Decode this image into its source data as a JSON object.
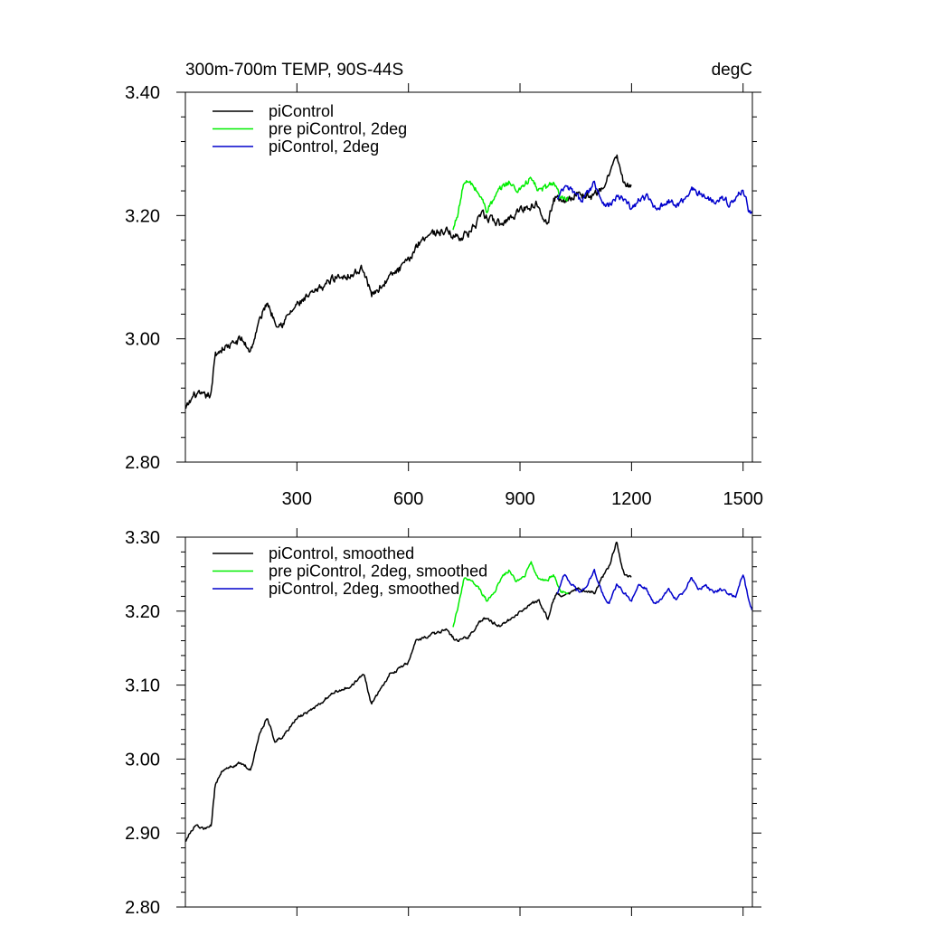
{
  "chart_data": [
    {
      "type": "line",
      "title_left": "300m-700m TEMP, 90S-44S",
      "title_right": "degC",
      "xlim": [
        0,
        1525
      ],
      "ylim": [
        2.8,
        3.4
      ],
      "x_ticks": [
        300,
        600,
        900,
        1200,
        1500
      ],
      "x_tick_labels": [
        "300",
        "600",
        "900",
        "1200",
        "1500"
      ],
      "y_ticks": [
        2.8,
        3.0,
        3.2,
        3.4
      ],
      "y_tick_labels": [
        "2.80",
        "3.00",
        "3.20",
        "3.40"
      ],
      "legend": [
        "piControl",
        "pre piControl, 2deg",
        "piControl, 2deg"
      ],
      "series": [
        {
          "name": "piControl",
          "color": "#000000",
          "noise": 0.012,
          "x": [
            1,
            25,
            50,
            70,
            80,
            100,
            125,
            150,
            175,
            200,
            220,
            240,
            260,
            300,
            350,
            400,
            450,
            480,
            500,
            550,
            600,
            620,
            650,
            700,
            730,
            760,
            800,
            850,
            900,
            950,
            975,
            990,
            1000,
            1020,
            1050,
            1100,
            1120,
            1140,
            1160,
            1170,
            1180,
            1200
          ],
          "values": [
            2.885,
            2.91,
            2.905,
            2.91,
            2.975,
            2.985,
            2.99,
            3.0,
            2.98,
            3.03,
            3.06,
            3.03,
            3.025,
            3.055,
            3.075,
            3.1,
            3.105,
            3.115,
            3.07,
            3.1,
            3.125,
            3.15,
            3.17,
            3.175,
            3.165,
            3.17,
            3.2,
            3.185,
            3.21,
            3.22,
            3.185,
            3.225,
            3.23,
            3.225,
            3.235,
            3.23,
            3.245,
            3.265,
            3.3,
            3.27,
            3.25,
            3.245
          ]
        },
        {
          "name": "pre piControl, 2deg",
          "color": "#00ee00",
          "noise": 0.01,
          "x": [
            720,
            735,
            750,
            770,
            790,
            810,
            830,
            850,
            870,
            890,
            910,
            930,
            950,
            970,
            990,
            1010,
            1030
          ],
          "values": [
            3.175,
            3.21,
            3.255,
            3.25,
            3.235,
            3.21,
            3.225,
            3.245,
            3.255,
            3.24,
            3.25,
            3.26,
            3.24,
            3.245,
            3.255,
            3.225,
            3.225
          ]
        },
        {
          "name": "piControl, 2deg",
          "color": "#0000cc",
          "noise": 0.01,
          "x": [
            1000,
            1020,
            1040,
            1060,
            1080,
            1100,
            1120,
            1140,
            1160,
            1180,
            1200,
            1220,
            1240,
            1260,
            1280,
            1300,
            1320,
            1340,
            1360,
            1380,
            1400,
            1420,
            1440,
            1460,
            1480,
            1500,
            1515,
            1525
          ],
          "values": [
            3.225,
            3.245,
            3.24,
            3.225,
            3.235,
            3.255,
            3.225,
            3.215,
            3.23,
            3.225,
            3.21,
            3.225,
            3.23,
            3.215,
            3.215,
            3.225,
            3.215,
            3.225,
            3.245,
            3.235,
            3.23,
            3.225,
            3.23,
            3.22,
            3.225,
            3.245,
            3.21,
            3.205
          ]
        }
      ]
    },
    {
      "type": "line",
      "xlim": [
        0,
        1525
      ],
      "ylim": [
        2.8,
        3.3
      ],
      "x_ticks": [
        300,
        600,
        900,
        1200,
        1500
      ],
      "y_ticks": [
        2.8,
        2.9,
        3.0,
        3.1,
        3.2,
        3.3
      ],
      "y_tick_labels": [
        "2.80",
        "2.90",
        "3.00",
        "3.10",
        "3.20",
        "3.30"
      ],
      "legend": [
        "piControl, smoothed",
        "pre piControl, 2deg, smoothed",
        "piControl, 2deg, smoothed"
      ],
      "series": [
        {
          "name": "piControl, smoothed",
          "color": "#000000",
          "noise": 0.004,
          "x": [
            1,
            25,
            50,
            70,
            80,
            100,
            125,
            150,
            175,
            200,
            220,
            240,
            260,
            300,
            350,
            400,
            450,
            480,
            500,
            550,
            600,
            620,
            650,
            700,
            730,
            760,
            800,
            850,
            900,
            950,
            975,
            990,
            1000,
            1020,
            1050,
            1100,
            1120,
            1140,
            1160,
            1170,
            1180,
            1200
          ],
          "values": [
            2.89,
            2.91,
            2.905,
            2.91,
            2.965,
            2.985,
            2.99,
            2.995,
            2.985,
            3.035,
            3.055,
            3.025,
            3.03,
            3.055,
            3.07,
            3.09,
            3.1,
            3.115,
            3.075,
            3.115,
            3.13,
            3.16,
            3.165,
            3.175,
            3.16,
            3.165,
            3.19,
            3.18,
            3.2,
            3.215,
            3.19,
            3.215,
            3.225,
            3.22,
            3.23,
            3.225,
            3.245,
            3.26,
            3.295,
            3.27,
            3.25,
            3.245
          ]
        },
        {
          "name": "pre piControl, 2deg, smoothed",
          "color": "#00ee00",
          "noise": 0.004,
          "x": [
            720,
            735,
            750,
            770,
            790,
            810,
            830,
            850,
            870,
            890,
            910,
            930,
            950,
            970,
            990,
            1010,
            1030
          ],
          "values": [
            3.18,
            3.21,
            3.245,
            3.24,
            3.23,
            3.215,
            3.225,
            3.245,
            3.255,
            3.24,
            3.245,
            3.265,
            3.245,
            3.24,
            3.25,
            3.225,
            3.225
          ]
        },
        {
          "name": "piControl, 2deg, smoothed",
          "color": "#0000cc",
          "noise": 0.004,
          "x": [
            1000,
            1020,
            1040,
            1060,
            1080,
            1100,
            1120,
            1140,
            1160,
            1180,
            1200,
            1220,
            1240,
            1260,
            1280,
            1300,
            1320,
            1340,
            1360,
            1380,
            1400,
            1420,
            1440,
            1460,
            1480,
            1500,
            1515,
            1525
          ],
          "values": [
            3.225,
            3.25,
            3.235,
            3.225,
            3.235,
            3.255,
            3.225,
            3.21,
            3.235,
            3.225,
            3.215,
            3.235,
            3.23,
            3.21,
            3.215,
            3.23,
            3.215,
            3.225,
            3.245,
            3.23,
            3.235,
            3.225,
            3.23,
            3.225,
            3.22,
            3.25,
            3.215,
            3.2
          ]
        }
      ]
    }
  ]
}
